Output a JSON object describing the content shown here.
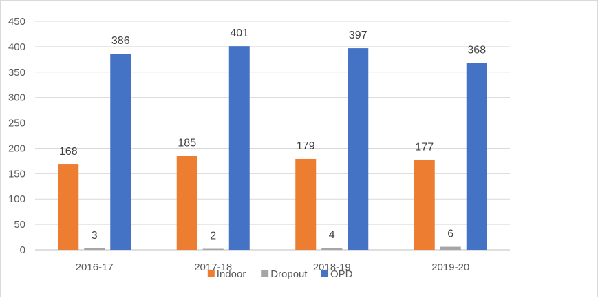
{
  "chart_data": {
    "type": "bar",
    "title": "",
    "xlabel": "",
    "ylabel": "",
    "categories": [
      "2016-17",
      "2017-18",
      "2018-19",
      "2019-20"
    ],
    "series": [
      {
        "name": "Indoor",
        "values": [
          168,
          185,
          179,
          177
        ],
        "color": "#ed7d31"
      },
      {
        "name": "Dropout",
        "values": [
          3,
          2,
          4,
          6
        ],
        "color": "#a5a5a5"
      },
      {
        "name": "OPD",
        "values": [
          386,
          401,
          397,
          368
        ],
        "color": "#4472c4"
      }
    ],
    "ylim": [
      0,
      450
    ],
    "yticks": [
      0,
      50,
      100,
      150,
      200,
      250,
      300,
      350,
      400,
      450
    ],
    "grid": true,
    "legend_position": "bottom"
  }
}
